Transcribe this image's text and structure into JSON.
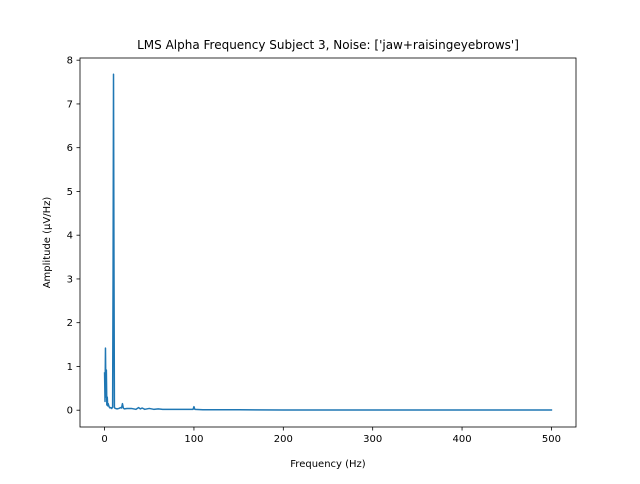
{
  "chart_data": {
    "type": "line",
    "title": "LMS Alpha Frequency Subject 3, Noise: ['jaw+raisingeyebrows']",
    "xlabel": "Frequency (Hz)",
    "ylabel": "Amplitude (μV/Hz)",
    "xlim": [
      -27.5,
      527.5
    ],
    "ylim": [
      -0.384,
      8.05
    ],
    "xticks": [
      0,
      100,
      200,
      300,
      400,
      500
    ],
    "xtick_labels": [
      "0",
      "100",
      "200",
      "300",
      "400",
      "500"
    ],
    "yticks": [
      0,
      1,
      2,
      3,
      4,
      5,
      6,
      7,
      8
    ],
    "ytick_labels": [
      "0",
      "1",
      "2",
      "3",
      "4",
      "5",
      "6",
      "7",
      "8"
    ],
    "grid": false,
    "legend": "none",
    "series": [
      {
        "color": "#1f77b4",
        "x": [
          0,
          0.5,
          1,
          1.5,
          2,
          2.5,
          3,
          3.5,
          4,
          5,
          6,
          7,
          8,
          9,
          9.5,
          10,
          10.5,
          11,
          12,
          14,
          16,
          18,
          19,
          20,
          21,
          22,
          25,
          30,
          35,
          38,
          40,
          42,
          45,
          50,
          55,
          60,
          65,
          70,
          80,
          90,
          99,
          100,
          101,
          110,
          120,
          130,
          140,
          150,
          200,
          250,
          300,
          400,
          500
        ],
        "values": [
          0.85,
          0.2,
          1.42,
          0.3,
          0.92,
          0.12,
          0.3,
          0.1,
          0.15,
          0.08,
          0.05,
          0.06,
          0.04,
          0.07,
          3.0,
          7.68,
          3.5,
          0.06,
          0.04,
          0.03,
          0.04,
          0.06,
          0.05,
          0.15,
          0.05,
          0.03,
          0.04,
          0.04,
          0.02,
          0.06,
          0.03,
          0.05,
          0.02,
          0.04,
          0.02,
          0.03,
          0.02,
          0.02,
          0.02,
          0.02,
          0.02,
          0.08,
          0.02,
          0.01,
          0.01,
          0.01,
          0.01,
          0.01,
          0.005,
          0.005,
          0.005,
          0.005,
          0.005
        ]
      }
    ]
  }
}
